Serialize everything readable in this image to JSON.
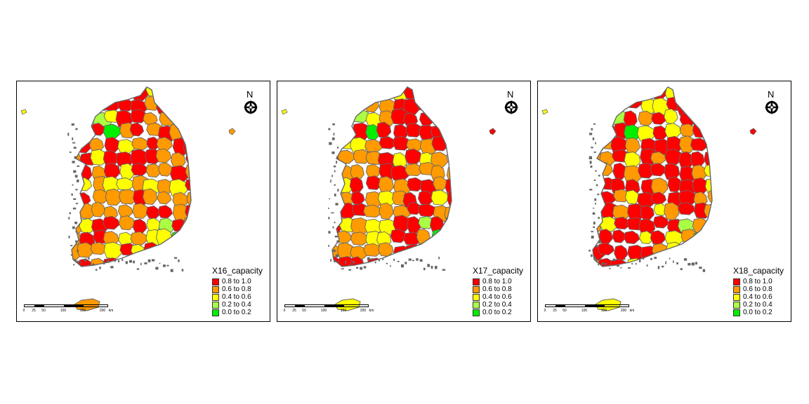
{
  "panels": [
    {
      "title": "X16_capacity",
      "island_color": "#ff9a00",
      "far_island_color": "#ff9a00",
      "region_palette": [
        "#ff0000",
        "#ff9a00",
        "#ff0000",
        "#ff9a00",
        "#ff9a00",
        "#ff0000",
        "#ffff00",
        "#ff9a00"
      ]
    },
    {
      "title": "X17_capacity",
      "island_color": "#ffff00",
      "far_island_color": "#ff0000",
      "region_palette": [
        "#ff0000",
        "#ff9a00",
        "#ff0000",
        "#ff0000",
        "#ff9a00",
        "#ff0000",
        "#ffff00",
        "#ff9a00"
      ]
    },
    {
      "title": "X18_capacity",
      "island_color": "#ffff00",
      "far_island_color": "#ff0000",
      "region_palette": [
        "#ff0000",
        "#ff0000",
        "#ff9a00",
        "#ff0000",
        "#ff9a00",
        "#ff0000",
        "#ffff00",
        "#ff0000"
      ]
    }
  ],
  "legend": [
    {
      "label": "0.8 to 1.0",
      "color": "#ff0000"
    },
    {
      "label": "0.6 to 0.8",
      "color": "#ff9a00"
    },
    {
      "label": "0.4 to 0.6",
      "color": "#ffff00"
    },
    {
      "label": "0.2 to 0.4",
      "color": "#aaff44"
    },
    {
      "label": "0.0 to 0.2",
      "color": "#00ee00"
    }
  ],
  "north_label": "N",
  "scale": {
    "labels": [
      "0",
      "25",
      "50",
      "100",
      "150",
      "200"
    ],
    "unit": "km"
  },
  "boundary_color": "#666666"
}
